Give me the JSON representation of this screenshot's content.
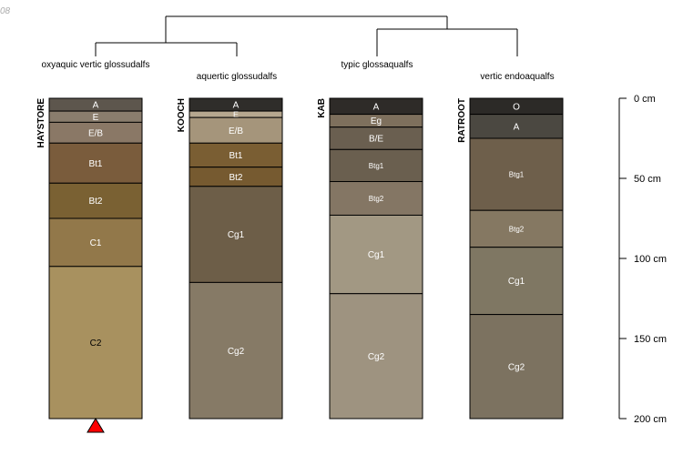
{
  "corner_mark": "08",
  "tree_labels": [
    "oxyaquic vertic glossudalfs",
    "aquertic glossudalfs",
    "typic glossaqualfs",
    "vertic endoaqualfs"
  ],
  "depth_axis": {
    "unit": "cm",
    "max_depth": 200,
    "ticks": [
      {
        "depth": 0,
        "label": "0 cm"
      },
      {
        "depth": 50,
        "label": "50 cm"
      },
      {
        "depth": 100,
        "label": "100 cm"
      },
      {
        "depth": 150,
        "label": "150 cm"
      },
      {
        "depth": 200,
        "label": "200 cm"
      }
    ]
  },
  "profiles": [
    {
      "name": "HAYSTORE",
      "marker": "red-triangle",
      "marker_color": "#ff0000",
      "horizons": [
        {
          "name": "A",
          "top": 0,
          "bottom": 8,
          "color": "#5d564d",
          "text_color": "#ffffff"
        },
        {
          "name": "E",
          "top": 8,
          "bottom": 15,
          "color": "#8a7d6d",
          "text_color": "#ffffff"
        },
        {
          "name": "E/B",
          "top": 15,
          "bottom": 28,
          "color": "#8a7866",
          "text_color": "#ffffff"
        },
        {
          "name": "Bt1",
          "top": 28,
          "bottom": 53,
          "color": "#7a5c3c",
          "text_color": "#ffffff"
        },
        {
          "name": "Bt2",
          "top": 53,
          "bottom": 75,
          "color": "#7a6133",
          "text_color": "#ffffff"
        },
        {
          "name": "C1",
          "top": 75,
          "bottom": 105,
          "color": "#92784a",
          "text_color": "#ffffff"
        },
        {
          "name": "C2",
          "top": 105,
          "bottom": 200,
          "color": "#a8915f",
          "text_color": "#000000"
        }
      ]
    },
    {
      "name": "KOOCH",
      "marker": "",
      "horizons": [
        {
          "name": "A",
          "top": 0,
          "bottom": 8,
          "color": "#2f2d2a",
          "text_color": "#ffffff"
        },
        {
          "name": "E",
          "top": 8,
          "bottom": 12,
          "color": "#b6a78f",
          "text_color": "#ffffff"
        },
        {
          "name": "E/B",
          "top": 12,
          "bottom": 28,
          "color": "#a5957b",
          "text_color": "#ffffff"
        },
        {
          "name": "Bt1",
          "top": 28,
          "bottom": 43,
          "color": "#7a5e33",
          "text_color": "#ffffff"
        },
        {
          "name": "Bt2",
          "top": 43,
          "bottom": 55,
          "color": "#765a30",
          "text_color": "#ffffff"
        },
        {
          "name": "Cg1",
          "top": 55,
          "bottom": 115,
          "color": "#6d5e48",
          "text_color": "#ffffff"
        },
        {
          "name": "Cg2",
          "top": 115,
          "bottom": 200,
          "color": "#867a66",
          "text_color": "#ffffff"
        }
      ]
    },
    {
      "name": "KAB",
      "marker": "",
      "horizons": [
        {
          "name": "A",
          "top": 0,
          "bottom": 10,
          "color": "#2e2b28",
          "text_color": "#ffffff"
        },
        {
          "name": "Eg",
          "top": 10,
          "bottom": 18,
          "color": "#7e705d",
          "text_color": "#ffffff"
        },
        {
          "name": "B/E",
          "top": 18,
          "bottom": 32,
          "color": "#6a5f50",
          "text_color": "#ffffff"
        },
        {
          "name": "Btg1",
          "top": 32,
          "bottom": 52,
          "color": "#6a5f4f",
          "text_color": "#ffffff"
        },
        {
          "name": "Btg2",
          "top": 52,
          "bottom": 73,
          "color": "#847664",
          "text_color": "#ffffff"
        },
        {
          "name": "Cg1",
          "top": 73,
          "bottom": 122,
          "color": "#a29883",
          "text_color": "#ffffff"
        },
        {
          "name": "Cg2",
          "top": 122,
          "bottom": 200,
          "color": "#9e9380",
          "text_color": "#ffffff"
        }
      ]
    },
    {
      "name": "RATROOT",
      "marker": "",
      "horizons": [
        {
          "name": "O",
          "top": 0,
          "bottom": 10,
          "color": "#2c2a27",
          "text_color": "#ffffff"
        },
        {
          "name": "A",
          "top": 10,
          "bottom": 25,
          "color": "#4b4841",
          "text_color": "#ffffff"
        },
        {
          "name": "Btg1",
          "top": 25,
          "bottom": 70,
          "color": "#6e5f4b",
          "text_color": "#ffffff"
        },
        {
          "name": "Btg2",
          "top": 70,
          "bottom": 93,
          "color": "#857862",
          "text_color": "#ffffff"
        },
        {
          "name": "Cg1",
          "top": 93,
          "bottom": 135,
          "color": "#7f7763",
          "text_color": "#ffffff"
        },
        {
          "name": "Cg2",
          "top": 135,
          "bottom": 200,
          "color": "#7c7260",
          "text_color": "#ffffff"
        }
      ]
    }
  ]
}
